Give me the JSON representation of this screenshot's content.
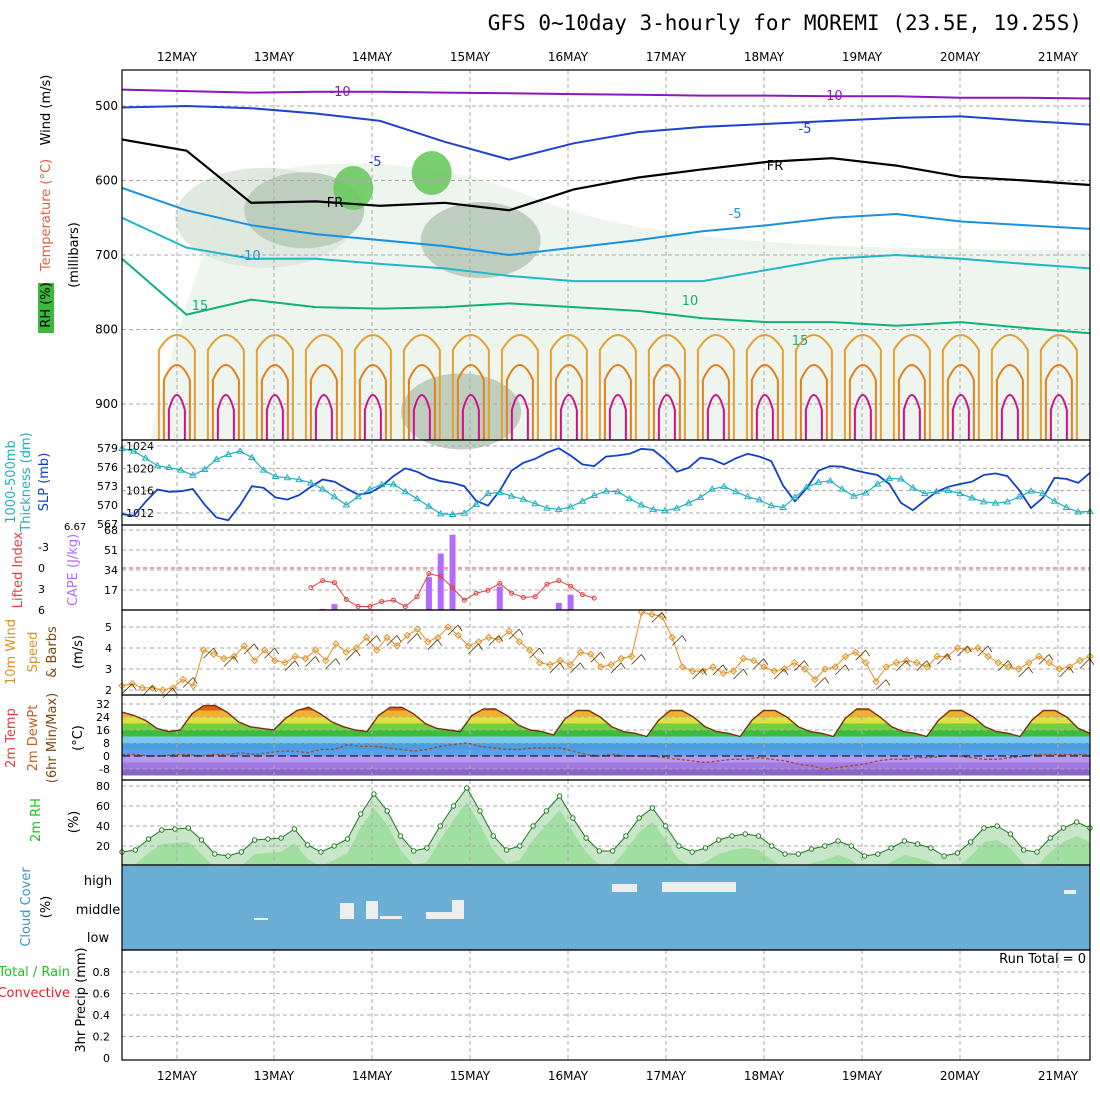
{
  "title": "GFS 0~10day 3-hourly for MOREMI (23.5E, 19.25S)",
  "colors": {
    "frame": "#000000",
    "grid": "#aaaaaa",
    "cloud_bg": "#6aaed6",
    "cape": "#b36bff",
    "lifted": "#e0403c",
    "slp": "#1040c8",
    "thick": "#20b0c0",
    "wind": "#e09020",
    "rh2m": "#1cc51c",
    "precip_total": "#20c020",
    "precip_conv": "#e02020"
  },
  "date_labels": [
    "12MAY",
    "13MAY",
    "14MAY",
    "15MAY",
    "16MAY",
    "17MAY",
    "18MAY",
    "19MAY",
    "20MAY",
    "21MAY"
  ],
  "chart_data": [
    {
      "panel": "upper_air",
      "type": "heatmap",
      "ylabels": [
        "Wind (m/s)",
        "Temperature (°C)",
        "RH (%)",
        "(millibars)"
      ],
      "y_ticks": [
        500,
        600,
        700,
        800,
        900
      ],
      "contour_labels": [
        {
          "text": "-10"
        },
        {
          "text": "-10"
        },
        {
          "text": "-5"
        },
        {
          "text": "-5"
        },
        {
          "text": "FR"
        },
        {
          "text": "FR"
        },
        {
          "text": "-5"
        },
        {
          "text": "-10"
        },
        {
          "text": "10"
        },
        {
          "text": "15"
        },
        {
          "text": "15"
        }
      ],
      "isotherms": [
        {
          "name": "-10",
          "color": "#8a18c0",
          "p": [
            478,
            480,
            482,
            481,
            481,
            482,
            483,
            484,
            485,
            486,
            486,
            487,
            487,
            489,
            489,
            490
          ]
        },
        {
          "name": "-5",
          "color": "#2040d0",
          "p": [
            502,
            500,
            503,
            510,
            520,
            548,
            572,
            550,
            535,
            528,
            524,
            520,
            516,
            514,
            520,
            525
          ]
        },
        {
          "name": "FR",
          "color": "#000000",
          "p": [
            545,
            560,
            630,
            628,
            634,
            630,
            640,
            612,
            596,
            585,
            575,
            570,
            580,
            595,
            600,
            606
          ]
        },
        {
          "name": "5",
          "color": "#1a90e0",
          "p": [
            610,
            640,
            660,
            672,
            680,
            688,
            700,
            690,
            680,
            668,
            660,
            650,
            645,
            655,
            660,
            665
          ]
        },
        {
          "name": "10",
          "color": "#20b8c8",
          "p": [
            650,
            690,
            705,
            705,
            712,
            718,
            728,
            735,
            735,
            735,
            720,
            705,
            700,
            705,
            712,
            718
          ]
        },
        {
          "name": "15",
          "color": "#10b080",
          "p": [
            705,
            780,
            760,
            770,
            772,
            770,
            765,
            770,
            775,
            785,
            790,
            790,
            795,
            790,
            798,
            805
          ]
        }
      ],
      "rh_patches": [
        {
          "level": 50,
          "t": 12.9,
          "p": 650
        },
        {
          "level": 70,
          "t": 13.3,
          "p": 640
        },
        {
          "level": 90,
          "t": 13.8,
          "p": 610
        },
        {
          "level": 90,
          "t": 14.6,
          "p": 590
        },
        {
          "level": 70,
          "t": 15.1,
          "p": 680
        },
        {
          "level": 70,
          "t": 14.9,
          "p": 910
        }
      ]
    },
    {
      "panel": "slp_thickness",
      "type": "line",
      "ylabels_left": [
        "1000-500mb",
        "Thickness (dm)"
      ],
      "ylabels_right": [
        "SLP (mb)"
      ],
      "left_ticks": [
        567,
        570,
        573,
        576,
        579
      ],
      "right_ticks": [
        1012,
        1016,
        1020,
        1024
      ],
      "series": [
        {
          "name": "SLP (mb)",
          "axis": "right",
          "values": [
            1011.8,
            1011.5,
            1014.0,
            1016.2,
            1015.8,
            1015.9,
            1016.3,
            1013.5,
            1011.2,
            1010.7,
            1013.4,
            1016.8,
            1016.5,
            1014.8,
            1014.4,
            1015.2,
            1016.7,
            1018.0,
            1017.6,
            1016.4,
            1015.3,
            1015.6,
            1016.8,
            1018.6,
            1020.0,
            1019.4,
            1018.3,
            1017.7,
            1017.4,
            1016.8,
            1014.2,
            1013.3,
            1016.0,
            1019.6,
            1021.0,
            1021.7,
            1022.8,
            1023.6,
            1022.3,
            1020.7,
            1020.4,
            1022.1,
            1022.3,
            1022.6,
            1023.5,
            1023.3,
            1021.6,
            1019.4,
            1020.1,
            1021.9,
            1021.6,
            1020.7,
            1021.8,
            1022.6,
            1022.1,
            1021.3,
            1016.9,
            1014.1,
            1016.4,
            1019.6,
            1020.4,
            1020.3,
            1019.7,
            1019.2,
            1018.8,
            1017.2,
            1013.8,
            1012.5,
            1014.2,
            1015.8,
            1016.7,
            1017.2,
            1017.6,
            1018.8,
            1019.1,
            1018.6,
            1016.1,
            1012.9,
            1014.7,
            1018.3,
            1018.1,
            1017.4,
            1019.2
          ]
        },
        {
          "name": "1000-500mb Thickness (dm)",
          "axis": "left",
          "values": [
            578.9,
            578.5,
            577.4,
            576.2,
            575.9,
            575.5,
            574.7,
            575.6,
            577.2,
            578.0,
            578.5,
            577.5,
            575.5,
            574.5,
            574.3,
            574.0,
            573.5,
            572.5,
            571.3,
            570.0,
            571.3,
            572.5,
            573.2,
            573.3,
            572.1,
            571.0,
            569.8,
            568.6,
            568.5,
            568.7,
            570.1,
            571.8,
            572.0,
            571.4,
            570.9,
            570.2,
            569.5,
            569.3,
            569.7,
            570.6,
            571.5,
            572.2,
            572.1,
            571.0,
            570.0,
            569.3,
            569.1,
            569.5,
            570.3,
            571.2,
            572.5,
            572.9,
            572.1,
            571.3,
            570.8,
            569.9,
            569.6,
            571.2,
            572.8,
            573.6,
            573.8,
            572.5,
            571.4,
            571.9,
            573.3,
            574.2,
            574.1,
            572.7,
            571.8,
            572.1,
            572.3,
            571.8,
            571.1,
            570.5,
            570.3,
            570.5,
            571.3,
            572.2,
            571.8,
            570.6,
            569.6,
            568.9,
            569.0
          ]
        }
      ]
    },
    {
      "panel": "cape_lifted",
      "type": "bar",
      "ylabels_left": [
        "Lifted Index"
      ],
      "ylabels_right": [
        "CAPE (J/kg)"
      ],
      "left_ticks": [
        "-3",
        "0",
        "3",
        "6"
      ],
      "right_ticks": [
        17,
        34,
        51,
        68
      ],
      "series": [
        {
          "name": "CAPE (J/kg)",
          "values": [
            0,
            0,
            0,
            0,
            0,
            0,
            0,
            0,
            0,
            0,
            0,
            0,
            0,
            0,
            0,
            0,
            0,
            1,
            5,
            0,
            0,
            0,
            0,
            0,
            0,
            0,
            28,
            48,
            64,
            0,
            0,
            0,
            20,
            0,
            0,
            0,
            0,
            6,
            13,
            0,
            0,
            0,
            0,
            0,
            0,
            0,
            0,
            0,
            0,
            0,
            0,
            0,
            0,
            0,
            0,
            0,
            0,
            0,
            0,
            0,
            0,
            0,
            0,
            0,
            0,
            0,
            0,
            0,
            0,
            0,
            0,
            0,
            0,
            0,
            0,
            0,
            0,
            0,
            0,
            0,
            0,
            0,
            0
          ]
        },
        {
          "name": "Lifted Index",
          "values": [
            null,
            null,
            null,
            null,
            null,
            null,
            null,
            null,
            null,
            null,
            null,
            null,
            null,
            null,
            null,
            null,
            2.8,
            1.8,
            2.1,
            4.5,
            5.5,
            5.5,
            4.8,
            4.6,
            5.5,
            4.1,
            0.8,
            1.2,
            2.8,
            4.6,
            3.6,
            3.2,
            2.2,
            3.6,
            4.2,
            4.1,
            2.3,
            1.8,
            2.6,
            3.8,
            4.3,
            null,
            null,
            null,
            null,
            null,
            null,
            null,
            null,
            null,
            null,
            null,
            null,
            null,
            null,
            null,
            null,
            null,
            null,
            null,
            null,
            null,
            null,
            null,
            null,
            null,
            null,
            null,
            null,
            null,
            null,
            null,
            null,
            null,
            null,
            null,
            null,
            null,
            null,
            null,
            null,
            null,
            null
          ]
        }
      ]
    },
    {
      "panel": "wind10m",
      "type": "line",
      "ylabels": [
        "10m Wind",
        "Speed",
        "& Barbs"
      ],
      "unit": "(m/s)",
      "y_ticks": [
        2,
        3,
        4,
        5
      ],
      "series": [
        {
          "name": "10m Wind Speed (m/s)",
          "values": [
            2.2,
            2.3,
            2.1,
            2.1,
            2.0,
            2.1,
            2.5,
            2.2,
            3.9,
            3.7,
            3.5,
            3.6,
            4.1,
            3.4,
            3.9,
            3.4,
            3.3,
            3.6,
            3.5,
            3.9,
            3.4,
            4.2,
            3.8,
            4.0,
            4.5,
            3.9,
            4.5,
            4.1,
            4.6,
            4.9,
            4.3,
            4.5,
            5.0,
            4.6,
            4.1,
            4.3,
            4.5,
            4.4,
            4.8,
            4.3,
            3.9,
            3.3,
            3.2,
            3.4,
            3.2,
            3.8,
            3.7,
            3.1,
            3.2,
            3.5,
            3.6,
            5.7,
            5.6,
            5.5,
            4.5,
            3.1,
            2.9,
            2.9,
            3.1,
            2.8,
            2.9,
            3.5,
            3.4,
            3.1,
            2.9,
            3.0,
            3.3,
            3.0,
            2.5,
            3.0,
            3.1,
            3.6,
            3.8,
            3.3,
            2.4,
            3.1,
            3.3,
            3.4,
            3.3,
            3.1,
            3.6,
            3.6,
            4.0,
            3.9,
            4.0,
            3.6,
            3.3,
            3.1,
            3.0,
            3.3,
            3.6,
            3.3,
            3.0,
            3.1,
            3.4,
            3.6
          ]
        }
      ]
    },
    {
      "panel": "temp2m",
      "type": "area",
      "ylabels": [
        "2m Temp",
        "2m DewPt",
        "(6hr Min/Max)"
      ],
      "unit": "(°C)",
      "y_ticks": [
        -8,
        0,
        8,
        16,
        24,
        32
      ],
      "series": [
        {
          "name": "2m Temp",
          "values": [
            27,
            25,
            22,
            17,
            15,
            16,
            26,
            31,
            31,
            27,
            21,
            18,
            17,
            16,
            23,
            28,
            30,
            26,
            21,
            18,
            16,
            15,
            25,
            30,
            30,
            26,
            20,
            17,
            16,
            15,
            25,
            29,
            29,
            25,
            19,
            16,
            15,
            13,
            23,
            28,
            28,
            24,
            18,
            15,
            14,
            12,
            22,
            28,
            28,
            24,
            18,
            15,
            14,
            12,
            22,
            28,
            28,
            24,
            18,
            15,
            14,
            12,
            23,
            29,
            29,
            24,
            18,
            15,
            14,
            12,
            22,
            28,
            28,
            24,
            18,
            15,
            14,
            12,
            22,
            28,
            28,
            24,
            17,
            14
          ]
        },
        {
          "name": "2m DewPt",
          "values": [
            1,
            1,
            0,
            0,
            1,
            1,
            0,
            1,
            1,
            2,
            1,
            2,
            3,
            3,
            2,
            4,
            4,
            7,
            6,
            6,
            5,
            4,
            3,
            4,
            6,
            7,
            8,
            6,
            5,
            4,
            4,
            5,
            5,
            5,
            3,
            1,
            0,
            1,
            0,
            0,
            0,
            -1,
            -2,
            -3,
            -4,
            -3,
            -2,
            -2,
            -1,
            -2,
            -3,
            -5,
            -6,
            -8,
            -7,
            -6,
            -5,
            -3,
            -2,
            -2,
            -1,
            -1,
            0,
            0,
            -1,
            -2,
            -2,
            -1,
            0,
            1,
            1,
            1,
            1,
            1
          ]
        }
      ]
    },
    {
      "panel": "rh2m",
      "type": "area",
      "ylabels": [
        "2m RH"
      ],
      "unit": "(%)",
      "y_ticks": [
        20,
        40,
        60,
        80
      ],
      "series": [
        {
          "name": "2m RH (%)",
          "values": [
            14,
            16,
            27,
            36,
            37,
            38,
            26,
            12,
            10,
            14,
            26,
            27,
            28,
            37,
            21,
            14,
            20,
            27,
            52,
            72,
            55,
            30,
            15,
            18,
            40,
            60,
            78,
            55,
            30,
            16,
            20,
            40,
            55,
            70,
            48,
            28,
            15,
            15,
            30,
            48,
            58,
            40,
            20,
            14,
            18,
            26,
            30,
            32,
            30,
            20,
            12,
            12,
            17,
            20,
            25,
            20,
            10,
            12,
            18,
            25,
            22,
            18,
            10,
            13,
            24,
            38,
            40,
            32,
            16,
            14,
            28,
            38,
            44,
            38
          ]
        }
      ]
    },
    {
      "panel": "cloud",
      "type": "bar",
      "ylabels": [
        "Cloud Cover",
        "(%)"
      ],
      "levels": [
        "high",
        "middle",
        "low"
      ],
      "series": [
        {
          "name": "middle",
          "values": [
            0,
            0,
            0,
            0,
            0,
            0,
            0,
            0,
            0,
            0,
            0,
            0,
            0,
            0,
            0,
            0,
            0,
            0,
            0,
            0,
            0,
            0,
            0,
            0,
            0,
            0,
            0,
            0,
            0,
            0,
            0,
            0,
            0,
            0,
            0,
            0,
            0,
            0,
            0,
            0,
            0,
            0,
            0,
            0,
            0,
            0,
            0,
            0,
            0,
            0,
            0,
            0,
            0,
            0,
            0,
            0,
            0,
            0,
            0,
            0,
            0,
            0,
            0,
            0,
            0,
            0,
            0,
            0,
            0,
            0,
            0,
            0,
            0,
            0,
            0,
            0,
            0,
            0,
            0,
            0,
            0,
            0,
            0,
            0,
            0,
            0,
            0,
            0,
            0,
            0,
            0,
            0,
            0,
            0,
            0,
            0
          ]
        }
      ],
      "text_right": "Run Total = 0"
    },
    {
      "panel": "precip",
      "type": "bar",
      "ylabels_left": [
        "Total / Rain",
        "Convective"
      ],
      "ylabel": "3hr Precip (mm)",
      "y_ticks": [
        0,
        0.2,
        0.4,
        0.6,
        0.8
      ],
      "series": [
        {
          "name": "Total",
          "values": []
        },
        {
          "name": "Convective",
          "values": []
        }
      ],
      "run_total": "Run Total = 0"
    }
  ]
}
